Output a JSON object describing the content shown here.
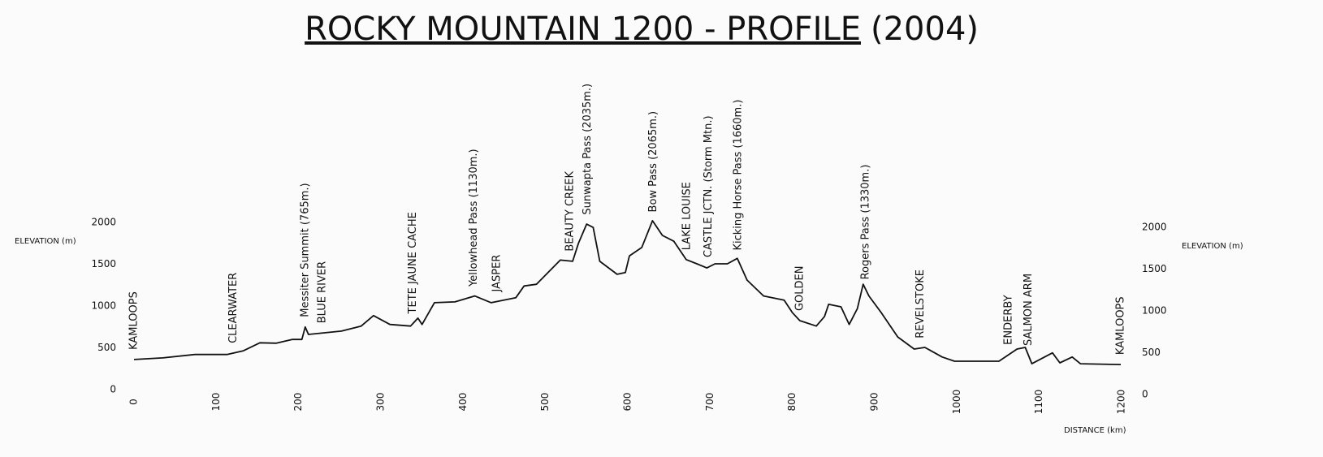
{
  "chart_data": {
    "type": "line",
    "title": "ROCKY MOUNTAIN 1200 - PROFILE",
    "subtitle": "(2004)",
    "y_label": "ELEVATION (m)",
    "y2_label": "ELEVATION (m)",
    "x_label": "DISTANCE (km)",
    "color": "#111111",
    "xlim": [
      0,
      1200
    ],
    "xticks": [
      0,
      100,
      200,
      300,
      400,
      500,
      600,
      700,
      800,
      900,
      1000,
      1100,
      1200
    ],
    "ylim": [
      0,
      2000
    ],
    "yticks": [
      0,
      500,
      1000,
      1500,
      2000
    ],
    "y2lim": [
      0,
      2000
    ],
    "y2ticks": [
      0,
      500,
      1000,
      1500,
      2000
    ],
    "x": [
      0,
      35,
      74,
      113,
      133,
      153,
      173,
      192,
      204,
      208,
      212,
      252,
      276,
      291,
      311,
      336,
      345,
      350,
      365,
      390,
      414,
      434,
      464,
      474,
      489,
      518,
      533,
      540,
      550,
      558,
      566,
      587,
      597,
      602,
      617,
      630,
      642,
      656,
      671,
      684,
      696,
      706,
      721,
      733,
      745,
      765,
      790,
      800,
      809,
      829,
      839,
      844,
      859,
      869,
      879,
      886,
      893,
      908,
      928,
      948,
      961,
      982,
      997,
      1051,
      1073,
      1083,
      1091,
      1116,
      1125,
      1140,
      1150,
      1199
    ],
    "values": [
      360,
      380,
      420,
      420,
      465,
      560,
      555,
      600,
      600,
      750,
      660,
      700,
      760,
      885,
      780,
      760,
      855,
      780,
      1040,
      1050,
      1120,
      1040,
      1100,
      1240,
      1260,
      1550,
      1535,
      1750,
      1980,
      1940,
      1535,
      1380,
      1400,
      1600,
      1700,
      2020,
      1845,
      1775,
      1555,
      1505,
      1455,
      1505,
      1505,
      1570,
      1310,
      1120,
      1070,
      920,
      825,
      760,
      875,
      1020,
      990,
      780,
      970,
      1260,
      1120,
      920,
      630,
      485,
      505,
      390,
      340,
      340,
      485,
      505,
      310,
      440,
      320,
      390,
      310,
      300
    ],
    "annotations": [
      {
        "text": "KAMLOOPS",
        "x": 0
      },
      {
        "text": "CLEARWATER",
        "x": 121
      },
      {
        "text": "Messiter Summit (765m.)",
        "x": 208
      },
      {
        "text": "BLUE RIVER",
        "x": 229
      },
      {
        "text": "TETE JAUNE CACHE",
        "x": 339
      },
      {
        "text": "Yellowhead Pass (1130m.)",
        "x": 413
      },
      {
        "text": "JASPER",
        "x": 441
      },
      {
        "text": "BEAUTY CREEK",
        "x": 530
      },
      {
        "text": "Sunwapta Pass (2035m.)",
        "x": 551
      },
      {
        "text": "Bow Pass (2065m.)",
        "x": 631
      },
      {
        "text": "LAKE LOUISE",
        "x": 672
      },
      {
        "text": "CASTLE JCTN. (Storm Mtn.)",
        "x": 698
      },
      {
        "text": "Kicking Horse Pass (1660m.)",
        "x": 734
      },
      {
        "text": "GOLDEN",
        "x": 809
      },
      {
        "text": "Rogers Pass (1330m.)",
        "x": 889
      },
      {
        "text": "REVELSTOKE",
        "x": 956
      },
      {
        "text": "ENDERBY",
        "x": 1063
      },
      {
        "text": "SALMON ARM",
        "x": 1087
      },
      {
        "text": "KAMLOOPS",
        "x": 1199
      }
    ]
  }
}
